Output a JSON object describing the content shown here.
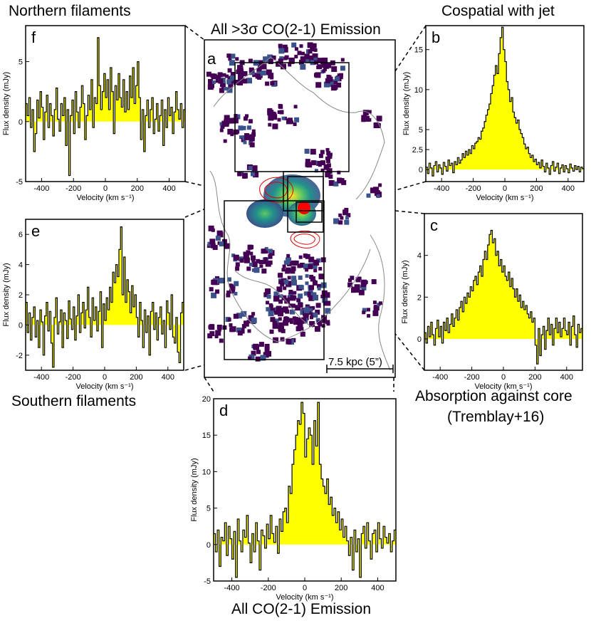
{
  "figure": {
    "titles": {
      "north": "Northern filaments",
      "jet": "Cospatial with jet",
      "all3sigma": "All >3σ CO(2-1) Emission",
      "south": "Southern filaments",
      "absorption_line1": "Absorption against core",
      "absorption_line2": "(Tremblay+16)",
      "all_co": "All CO(2-1) Emission"
    },
    "map": {
      "panel_letter": "a",
      "scalebar_label": "7.5 kpc (5”)"
    },
    "colors": {
      "fill": "#ffff00",
      "line": "#000000",
      "map_low": "#440154",
      "map_mid": "#21918c",
      "map_high": "#fde725",
      "radio_contours": "#e00000",
      "optical_contours": "#888888"
    }
  },
  "chart_data": [
    {
      "id": "f",
      "type": "step-histogram",
      "panel_letter": "f",
      "xlabel": "Velocity (km s⁻¹)",
      "ylabel": "Flux density (mJy)",
      "xlim": [
        -500,
        500
      ],
      "ylim": [
        -5,
        8
      ],
      "xticks": [
        -400,
        -200,
        0,
        200,
        400
      ],
      "yticks": [
        -5,
        0,
        5
      ],
      "series": [
        {
          "x0": -500,
          "dx": 10,
          "values": [
            1.5,
            0.5,
            2.0,
            -0.5,
            1.0,
            -2.5,
            -1.0,
            1.8,
            0.3,
            2.5,
            1.2,
            -1.5,
            0.8,
            2.2,
            -0.5,
            1.5,
            0.5,
            -1.2,
            1.0,
            2.8,
            0.2,
            -0.8,
            1.5,
            0.5,
            2.0,
            -2.0,
            1.0,
            -4.5,
            0.5,
            1.8,
            -1.0,
            2.5,
            0.8,
            -0.5,
            1.2,
            3.0,
            1.5,
            -1.5,
            0.5,
            2.2,
            1.0,
            3.5,
            -0.5,
            2.0,
            1.5,
            7.0,
            3.0,
            1.0,
            2.5,
            4.0,
            2.0,
            3.5,
            1.0,
            4.5,
            2.5,
            -1.0,
            3.0,
            1.8,
            4.0,
            2.0,
            1.2,
            3.5,
            0.8,
            2.5,
            1.0,
            3.8,
            2.0,
            4.5,
            1.5,
            3.0,
            5.0,
            2.0,
            -1.5,
            1.0,
            -2.5,
            0.5,
            1.8,
            -0.5,
            1.0,
            2.0,
            -1.0,
            0.2,
            1.5,
            -0.8,
            0.5,
            1.8,
            -2.0,
            1.0,
            -0.5,
            2.0,
            0.5,
            1.2,
            -1.0,
            0.8,
            2.5,
            1.0,
            0.2,
            1.5,
            -0.5,
            1.0
          ]
        }
      ]
    },
    {
      "id": "b",
      "type": "step-histogram",
      "panel_letter": "b",
      "xlabel": "Velocity (km s⁻¹)",
      "ylabel": "Flux density (mJy)",
      "xlim": [
        -500,
        500
      ],
      "ylim": [
        -1.5,
        18
      ],
      "xticks": [
        -400,
        -200,
        0,
        200,
        400
      ],
      "yticks": [
        0,
        2.5,
        5,
        10,
        15
      ],
      "series": [
        {
          "x0": -500,
          "dx": 10,
          "values": [
            0.3,
            -0.5,
            0.8,
            0.2,
            -0.8,
            0.5,
            1.0,
            -0.3,
            0.6,
            0.2,
            -0.6,
            0.9,
            0.4,
            -0.2,
            1.2,
            0.5,
            0.8,
            -0.4,
            1.0,
            0.6,
            1.5,
            0.8,
            1.2,
            2.0,
            1.5,
            2.3,
            1.8,
            2.5,
            2.0,
            3.0,
            2.6,
            3.3,
            3.5,
            4.0,
            3.8,
            4.8,
            5.2,
            6.0,
            6.8,
            7.5,
            8.2,
            9.5,
            10.5,
            11.8,
            13.0,
            12.0,
            14.5,
            16.5,
            17.8,
            15.0,
            13.5,
            11.0,
            10.0,
            8.5,
            9.0,
            7.2,
            6.5,
            5.8,
            6.2,
            5.0,
            4.5,
            4.0,
            3.2,
            2.6,
            2.8,
            2.0,
            1.5,
            1.8,
            1.0,
            1.3,
            0.6,
            0.9,
            0.2,
            1.2,
            0.4,
            -0.3,
            0.8,
            0.2,
            -0.6,
            0.5,
            1.0,
            -0.2,
            0.3,
            0.8,
            -0.5,
            0.2,
            0.6,
            -0.3,
            0.5,
            0.1,
            -0.4,
            0.7,
            0.2,
            -0.2,
            0.5,
            0.0,
            0.4,
            -0.3,
            0.3,
            0.1
          ]
        }
      ]
    },
    {
      "id": "e",
      "type": "step-histogram",
      "panel_letter": "e",
      "xlabel": "Velocity (km s⁻¹)",
      "ylabel": "Flux density (mJy)",
      "xlim": [
        -500,
        500
      ],
      "ylim": [
        -3,
        7
      ],
      "xticks": [
        -400,
        -200,
        0,
        200,
        400
      ],
      "yticks": [
        -2,
        0,
        2,
        4,
        6
      ],
      "series": [
        {
          "x0": -500,
          "dx": 10,
          "values": [
            1.5,
            -0.5,
            0.8,
            -1.0,
            0.5,
            1.2,
            -0.8,
            0.3,
            -1.5,
            1.0,
            0.2,
            -2.0,
            0.6,
            1.5,
            -0.4,
            0.9,
            -1.2,
            -2.8,
            0.5,
            1.8,
            -0.6,
            0.2,
            1.0,
            -1.5,
            0.8,
            0.3,
            -0.9,
            1.6,
            0.4,
            -0.3,
            1.2,
            -1.0,
            0.6,
            2.0,
            -0.5,
            0.8,
            1.5,
            -0.2,
            1.0,
            2.5,
            0.5,
            -0.8,
            1.8,
            0.3,
            1.2,
            -0.4,
            0.9,
            2.2,
            -1.5,
            1.4,
            0.3,
            1.8,
            1.0,
            2.5,
            1.5,
            3.5,
            2.8,
            4.0,
            3.2,
            5.0,
            6.5,
            2.0,
            4.5,
            1.5,
            3.0,
            2.2,
            0.8,
            2.6,
            1.2,
            2.0,
            0.5,
            -0.8,
            1.5,
            0.3,
            -1.5,
            1.0,
            -0.5,
            0.6,
            -2.0,
            0.9,
            1.5,
            -0.3,
            0.8,
            -1.0,
            0.5,
            1.2,
            -0.6,
            0.3,
            -1.5,
            1.6,
            0.8,
            -0.3,
            2.0,
            -0.8,
            -1.2,
            0.5,
            -1.8,
            -2.5,
            0.8,
            1.5
          ]
        }
      ]
    },
    {
      "id": "c",
      "type": "step-histogram",
      "panel_letter": "c",
      "xlabel": "Velocity (km s⁻¹)",
      "ylabel": "Flux density (mJy)",
      "xlim": [
        -500,
        500
      ],
      "ylim": [
        -1.5,
        6
      ],
      "xticks": [
        -400,
        -200,
        0,
        200,
        400
      ],
      "yticks": [
        0,
        2,
        4
      ],
      "series": [
        {
          "x0": -500,
          "dx": 10,
          "values": [
            0.3,
            -0.2,
            0.6,
            0.1,
            0.8,
            0.2,
            -0.3,
            0.5,
            0.9,
            0.1,
            0.6,
            -0.2,
            0.8,
            0.4,
            1.0,
            0.3,
            0.7,
            1.2,
            0.6,
            1.0,
            1.4,
            0.9,
            1.5,
            1.8,
            1.3,
            2.0,
            1.7,
            2.2,
            2.0,
            2.5,
            2.3,
            2.8,
            3.0,
            2.6,
            3.2,
            3.5,
            3.0,
            3.8,
            4.2,
            3.8,
            4.5,
            5.0,
            5.2,
            4.6,
            4.8,
            4.0,
            4.2,
            3.5,
            3.8,
            3.2,
            3.5,
            3.0,
            2.8,
            3.2,
            2.5,
            2.9,
            2.4,
            2.0,
            2.4,
            1.8,
            2.1,
            1.5,
            1.8,
            1.4,
            1.6,
            1.2,
            1.0,
            1.3,
            0.8,
            1.0,
            -0.3,
            -1.2,
            0.5,
            -0.8,
            0.2,
            0.6,
            -0.5,
            0.4,
            1.0,
            0.2,
            0.7,
            -0.3,
            0.5,
            1.0,
            0.3,
            0.8,
            0.1,
            0.5,
            1.0,
            0.4,
            0.2,
            0.8,
            -0.3,
            0.6,
            1.1,
            0.2,
            -0.4,
            0.7,
            0.3,
            0.5
          ]
        }
      ]
    },
    {
      "id": "d",
      "type": "step-histogram",
      "panel_letter": "d",
      "xlabel": "Velocity (km s⁻¹)",
      "ylabel": "Flux density (mJy)",
      "xlim": [
        -500,
        500
      ],
      "ylim": [
        -5,
        20
      ],
      "xticks": [
        -400,
        -200,
        0,
        200,
        400
      ],
      "yticks": [
        -5,
        0,
        5,
        10,
        15,
        20
      ],
      "series": [
        {
          "x0": -500,
          "dx": 10,
          "values": [
            1.5,
            -1.0,
            2.0,
            -3.0,
            1.0,
            0.5,
            3.0,
            -1.5,
            2.5,
            0.8,
            -2.0,
            1.8,
            -4.5,
            3.5,
            0.5,
            -1.0,
            2.0,
            1.0,
            4.0,
            0.2,
            -2.5,
            1.5,
            -1.0,
            3.0,
            0.5,
            -3.5,
            2.0,
            1.2,
            -0.5,
            2.8,
            0.8,
            4.0,
            1.5,
            0.3,
            2.5,
            -1.2,
            3.5,
            1.8,
            4.5,
            5.0,
            3.0,
            8.0,
            7.0,
            11.0,
            13.0,
            15.0,
            17.0,
            16.5,
            19.5,
            18.0,
            12.0,
            14.5,
            16.0,
            15.0,
            11.0,
            17.0,
            13.5,
            19.5,
            11.0,
            9.0,
            8.0,
            7.0,
            9.0,
            5.5,
            6.5,
            4.0,
            5.0,
            3.0,
            4.5,
            2.0,
            3.5,
            1.0,
            2.5,
            0.5,
            -1.5,
            1.0,
            -3.5,
            2.0,
            -1.0,
            0.8,
            -4.5,
            1.5,
            2.5,
            -0.5,
            3.0,
            0.5,
            -2.0,
            1.5,
            2.0,
            -1.0,
            3.0,
            0.8,
            -0.5,
            2.5,
            1.0,
            0.2,
            1.5,
            -1.0,
            0.5,
            2.0
          ]
        }
      ]
    }
  ]
}
